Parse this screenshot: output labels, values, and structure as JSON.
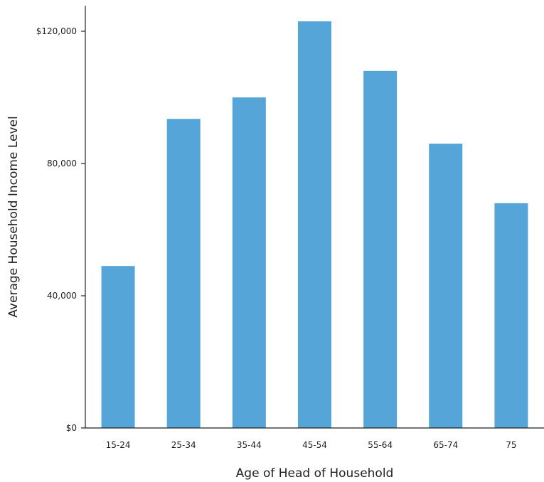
{
  "chart_data": {
    "type": "bar",
    "categories": [
      "15-24",
      "25-34",
      "35-44",
      "45-54",
      "55-64",
      "65-74",
      "75"
    ],
    "values": [
      49000,
      93500,
      100000,
      123000,
      108000,
      86000,
      68000
    ],
    "title": "",
    "xlabel": "Age of Head of Household",
    "ylabel": "Average Household Income Level",
    "ylim": [
      0,
      128000
    ],
    "yticks": [
      0,
      40000,
      80000,
      120000
    ],
    "ytick_labels": [
      "$0",
      "40,000",
      "80,000",
      "$120,000"
    ],
    "grid": false,
    "legend": "none",
    "bar_color": "#56a5d8"
  }
}
